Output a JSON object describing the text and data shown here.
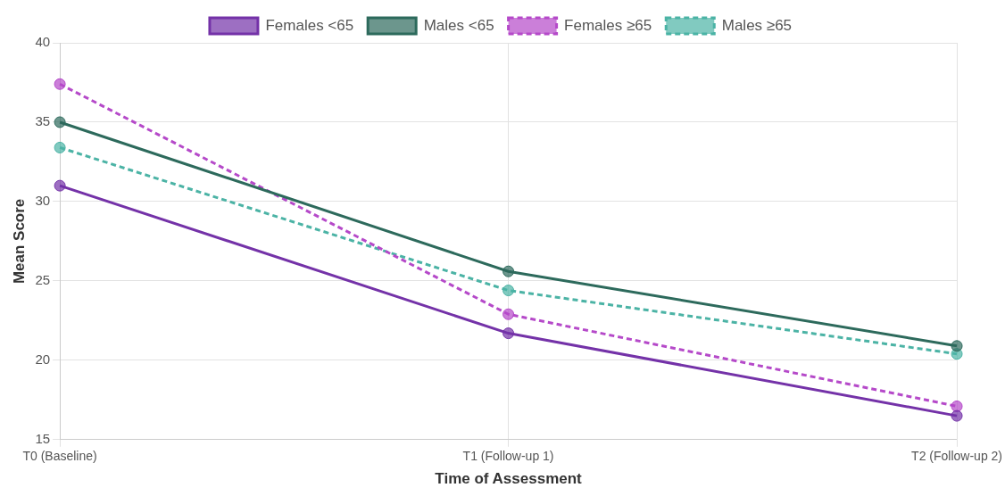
{
  "chart_data": {
    "type": "line",
    "xlabel": "Time of Assessment",
    "ylabel": "Mean Score",
    "categories": [
      "T0 (Baseline)",
      "T1 (Follow-up 1)",
      "T2 (Follow-up 2)"
    ],
    "ylim": [
      15,
      40
    ],
    "yticks": [
      15,
      20,
      25,
      30,
      35,
      40
    ],
    "grid": true,
    "legend": "top",
    "marker": "circle",
    "series": [
      {
        "name": "Females <65",
        "color": "#7432a8",
        "line_style": "solid",
        "values": [
          31.0,
          21.7,
          16.5
        ]
      },
      {
        "name": "Males <65",
        "color": "#2d6a5c",
        "line_style": "solid",
        "values": [
          35.0,
          25.6,
          20.9
        ]
      },
      {
        "name": "Females ≥65",
        "color": "#b549c9",
        "line_style": "dashed",
        "values": [
          37.4,
          22.9,
          17.1
        ]
      },
      {
        "name": "Males ≥65",
        "color": "#4bb3a5",
        "line_style": "dashed",
        "values": [
          33.4,
          24.4,
          20.4
        ]
      }
    ]
  }
}
